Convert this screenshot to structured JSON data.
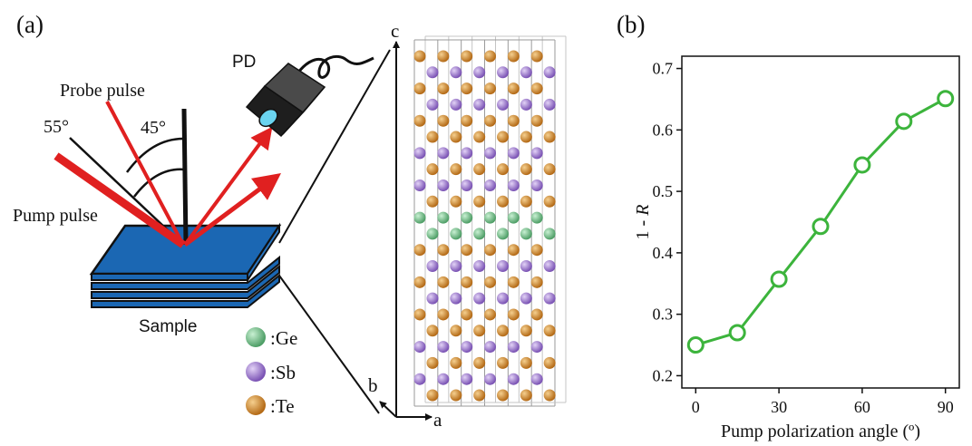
{
  "panel_a": {
    "label": "(a)",
    "probe_label": "Probe pulse",
    "pump_label": "Pump pulse",
    "angle_probe": "55°",
    "angle_pump": "45°",
    "detector_label": "PD",
    "sample_label": "Sample",
    "axes": {
      "c": "c",
      "b": "b",
      "a": "a"
    },
    "legend": [
      {
        "text": ":Ge",
        "color": "#5fb27a"
      },
      {
        "text": ":Sb",
        "color": "#8d67c2"
      },
      {
        "text": ":Te",
        "color": "#c87b22"
      }
    ],
    "colors": {
      "beam": "#e02020",
      "sample_top": "#1b67b3",
      "sample_side": "#2b78c4",
      "detector_lens": "#6ad4f0"
    }
  },
  "panel_b": {
    "label": "(b)",
    "chart_data": {
      "type": "line",
      "xlabel": "Pump polarization angle (º)",
      "ylabel_prefix": "1 - ",
      "ylabel_var": "R",
      "x": [
        0,
        15,
        30,
        45,
        60,
        75,
        90
      ],
      "y": [
        0.25,
        0.27,
        0.357,
        0.443,
        0.543,
        0.614,
        0.651
      ],
      "xlim": [
        -5,
        95
      ],
      "ylim": [
        0.18,
        0.72
      ],
      "xticks": [
        0,
        30,
        60,
        90
      ],
      "yticks": [
        0.2,
        0.3,
        0.4,
        0.5,
        0.6,
        0.7
      ],
      "ytick_labels": [
        "0.2",
        "0.3",
        "0.4",
        "0.5",
        "0.6",
        "0.7"
      ],
      "color": "#3cb43c",
      "marker": "open-circle"
    }
  }
}
